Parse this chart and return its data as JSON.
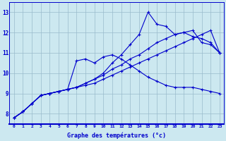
{
  "xlabel": "Graphe des températures (°c)",
  "xlim": [
    -0.5,
    23.5
  ],
  "ylim": [
    7.5,
    13.5
  ],
  "yticks": [
    8,
    9,
    10,
    11,
    12,
    13
  ],
  "xticks": [
    0,
    1,
    2,
    3,
    4,
    5,
    6,
    7,
    8,
    9,
    10,
    11,
    12,
    13,
    14,
    15,
    16,
    17,
    18,
    19,
    20,
    21,
    22,
    23
  ],
  "background_color": "#cce8f0",
  "grid_color": "#99bbcc",
  "line_color": "#0000cc",
  "lines": [
    [
      7.8,
      8.1,
      8.5,
      8.9,
      9.0,
      9.1,
      9.2,
      9.3,
      9.5,
      9.7,
      10.0,
      10.5,
      10.9,
      11.4,
      11.9,
      13.0,
      12.4,
      12.3,
      11.9,
      12.0,
      12.1,
      11.5,
      11.4,
      11.0
    ],
    [
      7.8,
      8.1,
      8.5,
      8.9,
      9.0,
      9.1,
      9.2,
      10.6,
      10.7,
      10.5,
      10.8,
      10.9,
      10.7,
      10.4,
      10.1,
      9.8,
      9.6,
      9.4,
      9.3,
      9.3,
      9.3,
      9.2,
      9.1,
      9.0
    ],
    [
      7.8,
      8.1,
      8.5,
      8.9,
      9.0,
      9.1,
      9.2,
      9.3,
      9.5,
      9.7,
      9.9,
      10.2,
      10.4,
      10.7,
      10.9,
      11.2,
      11.5,
      11.7,
      11.9,
      12.0,
      11.8,
      11.7,
      11.5,
      11.0
    ],
    [
      7.8,
      8.1,
      8.5,
      8.9,
      9.0,
      9.1,
      9.2,
      9.3,
      9.4,
      9.5,
      9.7,
      9.9,
      10.1,
      10.3,
      10.5,
      10.7,
      10.9,
      11.1,
      11.3,
      11.5,
      11.7,
      11.9,
      12.1,
      11.0
    ]
  ]
}
